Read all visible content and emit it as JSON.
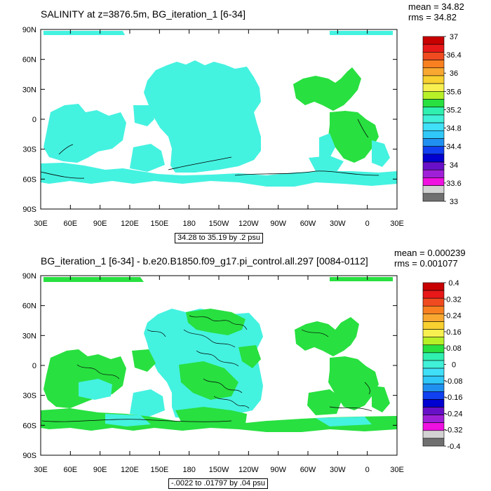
{
  "panels": [
    {
      "title": "SALINITY at z=3876.5m, BG_iteration_1 [6-34]",
      "mean_text": "mean = 34.82",
      "rms_text": "rms = 34.82",
      "info_text": "34.28 to 35.19 by .2 psu",
      "y_tick_labels": [
        "90N",
        "60N",
        "30N",
        "0",
        "30S",
        "60S",
        "90S"
      ],
      "x_tick_labels": [
        "30E",
        "60E",
        "90E",
        "120E",
        "150E",
        "180",
        "150W",
        "120W",
        "90W",
        "60W",
        "30W",
        "0",
        "30E"
      ],
      "colorbar_labels": [
        "37",
        "36.4",
        "36",
        "35.6",
        "35.2",
        "34.8",
        "34.4",
        "34",
        "33.6",
        "33"
      ]
    },
    {
      "title": "BG_iteration_1 [6-34] - b.e20.B1850.f09_g17.pi_control.all.297 [0084-0112]",
      "mean_text": "mean = 0.000239",
      "rms_text": "rms = 0.001077",
      "info_text": "-.0022 to .01797 by .04 psu",
      "y_tick_labels": [
        "90N",
        "60N",
        "30N",
        "0",
        "30S",
        "60S",
        "90S"
      ],
      "x_tick_labels": [
        "30E",
        "60E",
        "90E",
        "120E",
        "150E",
        "180",
        "150W",
        "120W",
        "90W",
        "60W",
        "30W",
        "0",
        "30E"
      ],
      "colorbar_labels": [
        "0.4",
        "0.32",
        "0.24",
        "0.16",
        "0.08",
        "0",
        "-0.08",
        "-0.16",
        "-0.24",
        "-0.32",
        "-0.4"
      ]
    }
  ],
  "colorbar_colors": [
    "#c80000",
    "#e81818",
    "#f04a20",
    "#f88020",
    "#f8a830",
    "#f8d030",
    "#f8f050",
    "#b8f028",
    "#28e040",
    "#30f0b0",
    "#40f0d8",
    "#40e0f8",
    "#30c8f8",
    "#2090f0",
    "#1040f0",
    "#0000d0",
    "#6810c8",
    "#a020d8",
    "#f010e0",
    "#d2d2d2",
    "#707070"
  ],
  "map_colors": {
    "cyan": "#44f2e0",
    "green": "#28e040",
    "ocean_blank": "#ffffff"
  },
  "chart_data": [
    {
      "type": "heatmap",
      "title": "SALINITY at z=3876.5m, BG_iteration_1 [6-34]",
      "projection": "cylindrical equidistant, longitude 30E to 30E (390E)",
      "x_axis": {
        "ticks": [
          "30E",
          "60E",
          "90E",
          "120E",
          "150E",
          "180",
          "150W",
          "120W",
          "90W",
          "60W",
          "30W",
          "0",
          "30E"
        ],
        "range_deg": [
          30,
          390
        ]
      },
      "y_axis": {
        "ticks": [
          "90N",
          "60N",
          "30N",
          "0",
          "30S",
          "60S",
          "90S"
        ],
        "range_deg": [
          -90,
          90
        ]
      },
      "contour_info": "34.28 to 35.19 by .2 psu",
      "mean": 34.82,
      "rms": 34.82,
      "colorbar_levels": [
        33,
        33.6,
        34,
        34.4,
        34.8,
        35.2,
        35.6,
        36,
        36.4,
        37
      ],
      "dominant_values": {
        "Pacific & Indian & Southern deep water": "~34.7 (cyan)",
        "Atlantic deep water": "~34.9 (green)"
      }
    },
    {
      "type": "heatmap",
      "title": "BG_iteration_1 [6-34] - b.e20.B1850.f09_g17.pi_control.all.297 [0084-0112]",
      "projection": "cylindrical equidistant, longitude 30E to 30E (390E)",
      "x_axis": {
        "ticks": [
          "30E",
          "60E",
          "90E",
          "120E",
          "150E",
          "180",
          "150W",
          "120W",
          "90W",
          "60W",
          "30W",
          "0",
          "30E"
        ],
        "range_deg": [
          30,
          390
        ]
      },
      "y_axis": {
        "ticks": [
          "90N",
          "60N",
          "30N",
          "0",
          "30S",
          "60S",
          "90S"
        ],
        "range_deg": [
          -90,
          90
        ]
      },
      "contour_info": "-.0022 to .01797 by .04 psu",
      "mean": 0.000239,
      "rms": 0.001077,
      "colorbar_levels": [
        -0.4,
        -0.32,
        -0.24,
        -0.16,
        -0.08,
        0,
        0.08,
        0.16,
        0.24,
        0.32,
        0.4
      ],
      "dominant_values": {
        "cyan regions": "-0.04 to 0",
        "green regions": "0 to 0.04"
      }
    }
  ]
}
